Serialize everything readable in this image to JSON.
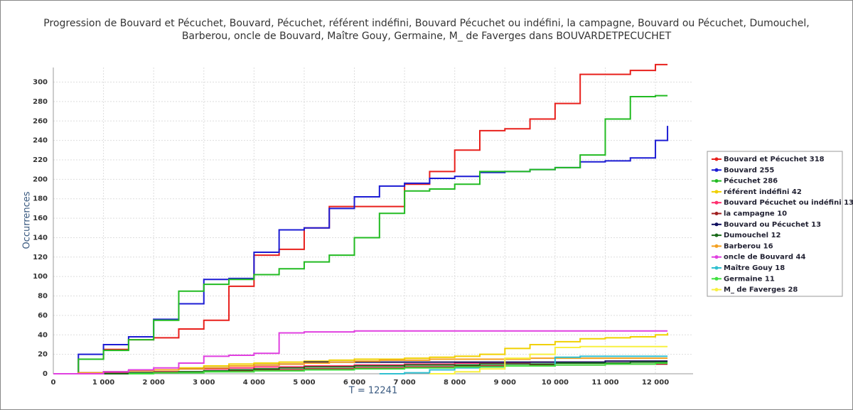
{
  "chart_data": {
    "type": "line",
    "step": true,
    "title": [
      "Progression de Bouvard et Pécuchet, Bouvard, Pécuchet, référent indéfini, Bouvard Pécuchet ou indéfini, la campagne, Bouvard ou Pécuchet, Dumouchel,",
      "Barberou, oncle de Bouvard, Maître Gouy, Germaine, M_ de Faverges dans BOUVARDETPECUCHET"
    ],
    "xlabel": "T = 12241",
    "ylabel": "Occurrences",
    "x": [
      0,
      500,
      1000,
      1500,
      2000,
      2500,
      3000,
      3500,
      4000,
      4500,
      5000,
      5500,
      6000,
      6500,
      7000,
      7500,
      8000,
      8500,
      9000,
      9500,
      10000,
      10500,
      11000,
      11500,
      12000,
      12241
    ],
    "xlim": [
      0,
      12750
    ],
    "ylim": [
      0,
      315
    ],
    "xticks": [
      0,
      {
        "value": 1000,
        "label": "1 000"
      },
      {
        "value": 2000,
        "label": "2 000"
      },
      {
        "value": 3000,
        "label": "3 000"
      },
      {
        "value": 4000,
        "label": "4 000"
      },
      {
        "value": 5000,
        "label": "5 000"
      },
      {
        "value": 6000,
        "label": "6 000"
      },
      {
        "value": 7000,
        "label": "7 000"
      },
      {
        "value": 8000,
        "label": "8 000"
      },
      {
        "value": 9000,
        "label": "9 000"
      },
      {
        "value": 10000,
        "label": "10 000"
      },
      {
        "value": 11000,
        "label": "11 000"
      },
      {
        "value": 12000,
        "label": "12 000"
      }
    ],
    "yticks": [
      0,
      20,
      40,
      60,
      80,
      100,
      120,
      140,
      160,
      180,
      200,
      220,
      240,
      260,
      280,
      300
    ],
    "grid": true,
    "legend": "right",
    "series": [
      {
        "name": "Bouvard et Pécuchet 318",
        "color": "#e8201c",
        "values": [
          0,
          15,
          25,
          35,
          37,
          46,
          55,
          90,
          122,
          128,
          150,
          172,
          172,
          172,
          195,
          208,
          230,
          250,
          252,
          262,
          278,
          308,
          308,
          312,
          318,
          318
        ]
      },
      {
        "name": "Bouvard 255",
        "color": "#1c1cd4",
        "values": [
          0,
          20,
          30,
          38,
          56,
          72,
          97,
          98,
          125,
          148,
          150,
          170,
          182,
          193,
          196,
          201,
          203,
          207,
          208,
          210,
          212,
          218,
          219,
          222,
          240,
          255
        ]
      },
      {
        "name": "Pécuchet 286",
        "color": "#22bb22",
        "values": [
          0,
          15,
          24,
          35,
          55,
          85,
          92,
          97,
          102,
          108,
          115,
          122,
          140,
          165,
          188,
          190,
          195,
          208,
          208,
          210,
          212,
          225,
          262,
          285,
          286,
          286
        ]
      },
      {
        "name": "référent indéfini 42",
        "color": "#f0d000",
        "values": [
          0,
          0,
          2,
          3,
          4,
          6,
          8,
          10,
          11,
          12,
          13,
          14,
          15,
          15,
          16,
          17,
          18,
          20,
          26,
          30,
          33,
          36,
          37,
          38,
          40,
          42
        ]
      },
      {
        "name": "Bouvard Pécuchet ou indéfini 13",
        "color": "#ff2f6e",
        "values": [
          0,
          1,
          2,
          3,
          4,
          5,
          5,
          6,
          7,
          7,
          8,
          8,
          9,
          9,
          10,
          10,
          11,
          11,
          11,
          12,
          12,
          12,
          13,
          13,
          13,
          13
        ]
      },
      {
        "name": "la campagne 10",
        "color": "#a02020",
        "values": [
          0,
          0,
          1,
          1,
          2,
          2,
          3,
          3,
          4,
          4,
          5,
          5,
          6,
          6,
          7,
          7,
          8,
          8,
          8,
          9,
          9,
          9,
          10,
          10,
          10,
          10
        ]
      },
      {
        "name": "Bouvard ou Pécuchet 13",
        "color": "#101060",
        "values": [
          0,
          1,
          2,
          3,
          4,
          5,
          6,
          8,
          9,
          10,
          12,
          12,
          12,
          12,
          12,
          12,
          12,
          12,
          12,
          12,
          12,
          12,
          13,
          13,
          13,
          13
        ]
      },
      {
        "name": "Dumouchel 12",
        "color": "#1a6a1a",
        "values": [
          0,
          0,
          0,
          1,
          1,
          2,
          3,
          4,
          5,
          6,
          7,
          7,
          8,
          8,
          9,
          9,
          9,
          10,
          10,
          10,
          11,
          11,
          11,
          12,
          12,
          12
        ]
      },
      {
        "name": "Barberou 16",
        "color": "#f4a020",
        "values": [
          0,
          1,
          2,
          3,
          4,
          5,
          6,
          8,
          9,
          10,
          11,
          12,
          13,
          14,
          14,
          15,
          15,
          15,
          15,
          16,
          16,
          16,
          16,
          16,
          16,
          16
        ]
      },
      {
        "name": "oncle de Bouvard 44",
        "color": "#e040e0",
        "values": [
          0,
          0,
          2,
          4,
          6,
          11,
          18,
          19,
          21,
          42,
          43,
          43,
          44,
          44,
          44,
          44,
          44,
          44,
          44,
          44,
          44,
          44,
          44,
          44,
          44,
          44
        ]
      },
      {
        "name": "Maître Gouy 18",
        "color": "#30c0d0",
        "values": [
          null,
          null,
          null,
          null,
          null,
          null,
          null,
          null,
          null,
          null,
          null,
          null,
          null,
          0,
          1,
          4,
          6,
          7,
          8,
          8,
          17,
          18,
          18,
          18,
          18,
          18
        ]
      },
      {
        "name": "Germaine 11",
        "color": "#40e040",
        "values": [
          null,
          null,
          null,
          0,
          1,
          1,
          2,
          2,
          3,
          3,
          4,
          4,
          5,
          5,
          6,
          6,
          7,
          7,
          8,
          8,
          9,
          9,
          10,
          10,
          11,
          11
        ]
      },
      {
        "name": "M_ de Faverges 28",
        "color": "#f8f040",
        "values": [
          null,
          null,
          null,
          null,
          null,
          null,
          null,
          null,
          null,
          null,
          null,
          null,
          null,
          null,
          null,
          0,
          2,
          5,
          16,
          20,
          27,
          28,
          28,
          28,
          28,
          28
        ]
      }
    ]
  }
}
